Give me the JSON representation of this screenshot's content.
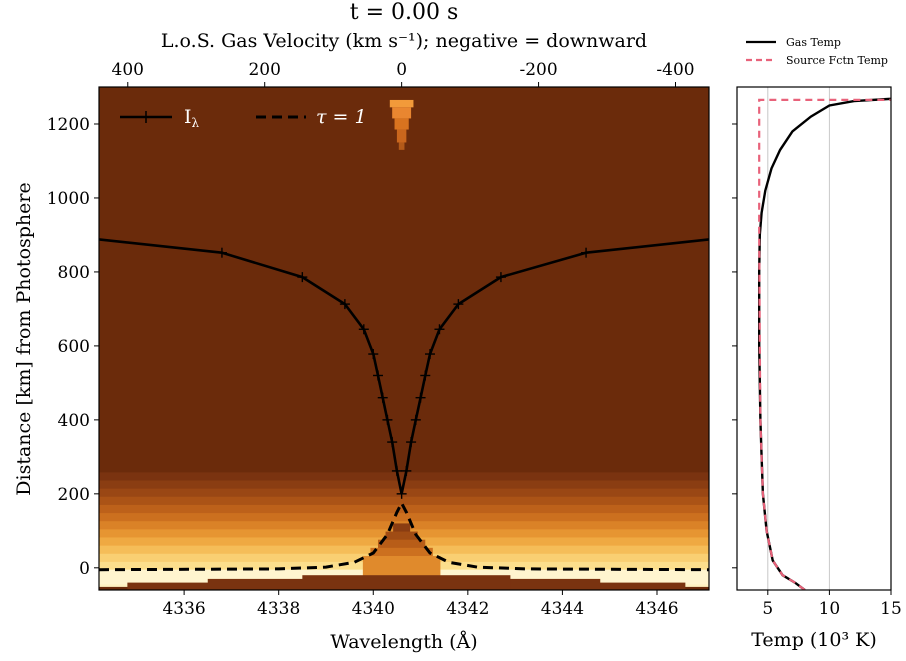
{
  "figure": {
    "title": "t = 0.00 s",
    "colors": {
      "background_fill": "#6b2b0b",
      "gas_temp": "#000000",
      "source_fctn_temp": "#e8627a"
    }
  },
  "chart_data": [
    {
      "type": "heatmap",
      "title": "t = 0.00 s",
      "xlabel": "Wavelength (Å)",
      "ylabel": "Distance [km] from Photosphere",
      "top_xlabel": "L.o.S. Gas Velocity (km s⁻¹); negative = downward",
      "xlim": [
        4334.2,
        4347.1
      ],
      "ylim": [
        -60,
        1300
      ],
      "xticks": [
        4336,
        4338,
        4340,
        4342,
        4344,
        4346
      ],
      "xtick_labels": [
        "4336",
        "4338",
        "4340",
        "4342",
        "4344",
        "4346"
      ],
      "yticks": [
        0,
        200,
        400,
        600,
        800,
        1000,
        1200
      ],
      "ytick_labels": [
        "0",
        "200",
        "400",
        "600",
        "800",
        "1000",
        "1200"
      ],
      "top_xticks": [
        400,
        200,
        0,
        -200,
        -400
      ],
      "top_xtick_labels": [
        "400",
        "200",
        "0",
        "-200",
        "-400"
      ],
      "line_center": 4340.6,
      "legend": {
        "placement": "top-left",
        "entries": [
          "I",
          "τ = 1"
        ]
      },
      "series": [
        {
          "name": "Iλ",
          "style": "solid-with-markers",
          "x": [
            4334.2,
            4336.8,
            4338.5,
            4339.4,
            4339.8,
            4340.0,
            4340.1,
            4340.2,
            4340.3,
            4340.4,
            4340.5,
            4340.6,
            4340.7,
            4340.8,
            4340.9,
            4341.0,
            4341.1,
            4341.2,
            4341.4,
            4341.8,
            4342.7,
            4344.5,
            4347.1
          ],
          "y": [
            888,
            852,
            786,
            713,
            645,
            578,
            520,
            460,
            400,
            340,
            262,
            200,
            262,
            340,
            400,
            460,
            520,
            578,
            645,
            713,
            786,
            852,
            888
          ]
        },
        {
          "name": "τ = 1",
          "style": "dashed",
          "x": [
            4334.2,
            4338.0,
            4339.0,
            4339.6,
            4340.0,
            4340.3,
            4340.5,
            4340.6,
            4340.7,
            4340.9,
            4341.2,
            4341.6,
            4342.2,
            4343.2,
            4347.1
          ],
          "y": [
            -5,
            -3,
            2,
            15,
            40,
            90,
            150,
            175,
            150,
            90,
            40,
            15,
            2,
            -3,
            -5
          ]
        }
      ]
    },
    {
      "type": "line",
      "xlabel": "Temp (10³ K)",
      "xlim": [
        2.5,
        15
      ],
      "ylim": [
        -60,
        1300
      ],
      "xticks": [
        5,
        10,
        15
      ],
      "xtick_labels": [
        "5",
        "10",
        "15"
      ],
      "vertical_gridlines": [
        5,
        10
      ],
      "legend": {
        "placement": "top-right",
        "entries": [
          "Gas Temp",
          "Source Fctn Temp"
        ]
      },
      "series": [
        {
          "name": "Gas Temp",
          "x": [
            8.0,
            7.2,
            6.2,
            5.4,
            4.9,
            4.6,
            4.5,
            4.4,
            4.35,
            4.3,
            4.3,
            4.35,
            4.5,
            4.8,
            5.3,
            6.0,
            7.0,
            8.5,
            10.0,
            12.0,
            15.0
          ],
          "y": [
            -60,
            -40,
            -20,
            20,
            100,
            200,
            300,
            400,
            500,
            600,
            800,
            900,
            960,
            1020,
            1080,
            1130,
            1180,
            1220,
            1250,
            1262,
            1268
          ]
        },
        {
          "name": "Source Fctn Temp",
          "x": [
            8.0,
            7.2,
            6.2,
            5.4,
            4.9,
            4.6,
            4.5,
            4.4,
            4.35,
            4.3,
            4.3,
            4.3,
            15.0
          ],
          "y": [
            -60,
            -40,
            -20,
            20,
            100,
            200,
            300,
            400,
            600,
            900,
            1200,
            1265,
            1265
          ]
        }
      ]
    }
  ]
}
